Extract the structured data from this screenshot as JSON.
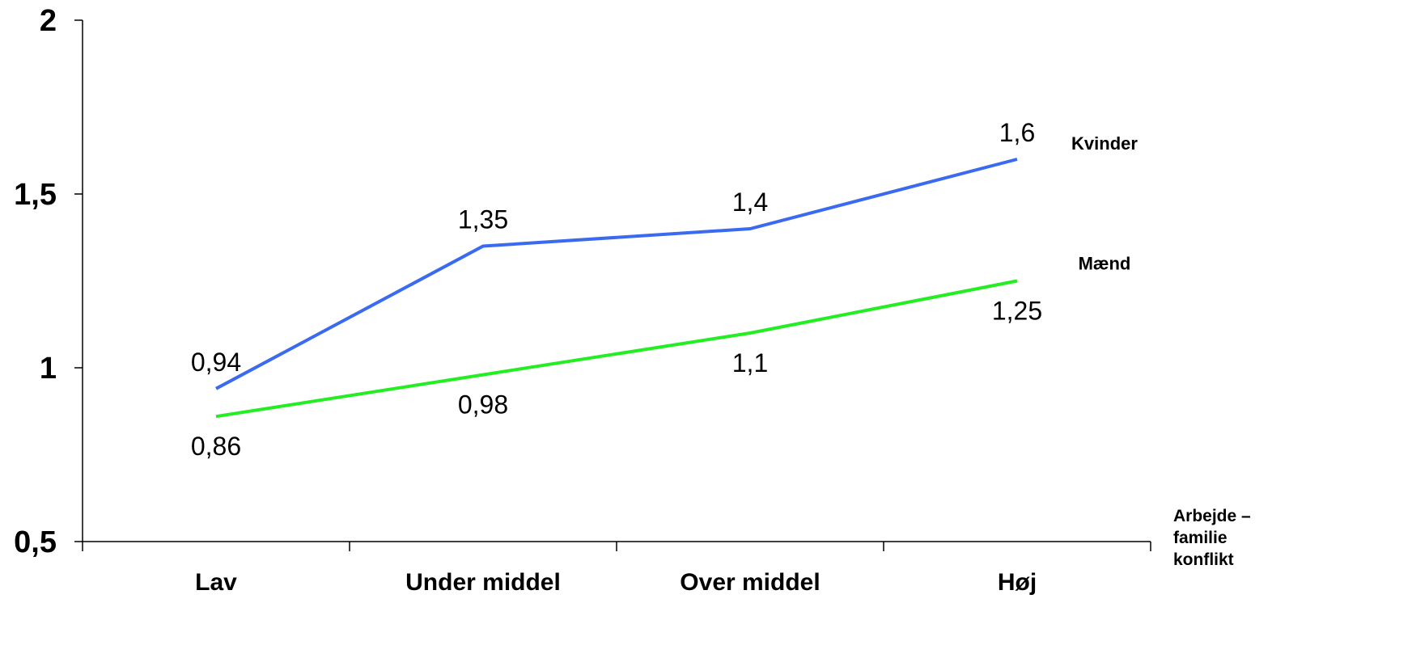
{
  "chart_data": {
    "type": "line",
    "categories": [
      "Lav",
      "Under middel",
      "Over middel",
      "Høj"
    ],
    "series": [
      {
        "name": "Kvinder",
        "color": "#3a6af0",
        "values": [
          0.94,
          1.35,
          1.4,
          1.6
        ],
        "labels": [
          "0,94",
          "1,35",
          "1,4",
          "1,6"
        ]
      },
      {
        "name": "Mænd",
        "color": "#22ee22",
        "values": [
          0.86,
          0.98,
          1.1,
          1.25
        ],
        "labels": [
          "0,86",
          "0,98",
          "1,1",
          "1,25"
        ]
      }
    ],
    "yticks": [
      0.5,
      1,
      1.5,
      2
    ],
    "ytick_labels": [
      "0,5",
      "1",
      "1,5",
      "2"
    ],
    "ylim": [
      0.5,
      2
    ],
    "xlabel": [
      "Arbejde –",
      "familie",
      "konflikt"
    ],
    "ylabel": "",
    "title": "",
    "grid": false,
    "legend": "series labels at line ends (right)"
  }
}
